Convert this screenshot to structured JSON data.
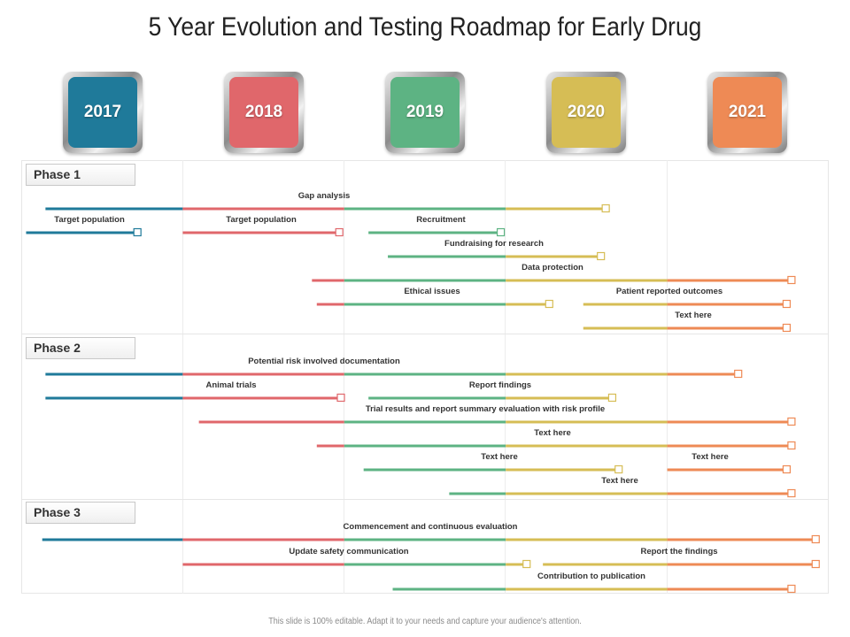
{
  "title": "5 Year Evolution and Testing Roadmap for Early Drug",
  "footer": "This slide is 100% editable. Adapt it to your needs and capture your audience's attention.",
  "colors": {
    "2017": "#1f7a9a",
    "2018": "#e0676b",
    "2019": "#5db383",
    "2020": "#d6bd55",
    "2021": "#ee8a55"
  },
  "years": [
    {
      "label": "2017",
      "color": "#1f7a9a"
    },
    {
      "label": "2018",
      "color": "#e0676b"
    },
    {
      "label": "2019",
      "color": "#5db383"
    },
    {
      "label": "2020",
      "color": "#d6bd55"
    },
    {
      "label": "2021",
      "color": "#ee8a55"
    }
  ],
  "phases": [
    {
      "label": "Phase 1"
    },
    {
      "label": "Phase 2"
    },
    {
      "label": "Phase 3"
    }
  ],
  "chart_data": {
    "type": "gantt",
    "time_axis": {
      "unit": "year",
      "start": 2017,
      "end": 2022
    },
    "tasks": [
      {
        "phase": "Phase 1",
        "label": "Gap analysis",
        "start": 2017.15,
        "end": 2020.6
      },
      {
        "phase": "Phase 1",
        "label": "Target population",
        "start": 2017.03,
        "end": 2017.7
      },
      {
        "phase": "Phase 1",
        "label": "Target population",
        "start": 2018.0,
        "end": 2018.95
      },
      {
        "phase": "Phase 1",
        "label": "Recruitment",
        "start": 2019.15,
        "end": 2019.95
      },
      {
        "phase": "Phase 1",
        "label": "Fundraising for research",
        "start": 2019.27,
        "end": 2020.57
      },
      {
        "phase": "Phase 1",
        "label": "Data protection",
        "start": 2018.8,
        "end": 2021.75
      },
      {
        "phase": "Phase 1",
        "label": "Ethical issues",
        "start": 2018.83,
        "end": 2020.25
      },
      {
        "phase": "Phase 1",
        "label": "Patient reported outcomes",
        "start": 2020.48,
        "end": 2021.72
      },
      {
        "phase": "Phase 1",
        "label": "Text here",
        "start": 2020.48,
        "end": 2021.72
      },
      {
        "phase": "Phase 2",
        "label": "Potential risk involved documentation",
        "start": 2017.15,
        "end": 2021.42
      },
      {
        "phase": "Phase 2",
        "label": "Animal trials",
        "start": 2017.15,
        "end": 2018.96
      },
      {
        "phase": "Phase 2",
        "label": "Report findings",
        "start": 2019.15,
        "end": 2020.64
      },
      {
        "phase": "Phase 2",
        "label": "Trial results and report summary evaluation with risk profile",
        "start": 2018.1,
        "end": 2021.75
      },
      {
        "phase": "Phase 2",
        "label": "Text here",
        "start": 2018.83,
        "end": 2021.75
      },
      {
        "phase": "Phase 2",
        "label": "Text here",
        "start": 2019.12,
        "end": 2020.68
      },
      {
        "phase": "Phase 2",
        "label": "Text here",
        "start": 2021.0,
        "end": 2021.72
      },
      {
        "phase": "Phase 2",
        "label": "Text here",
        "start": 2019.65,
        "end": 2021.75
      },
      {
        "phase": "Phase 3",
        "label": "Commencement and continuous evaluation",
        "start": 2017.13,
        "end": 2021.9
      },
      {
        "phase": "Phase 3",
        "label": "Update safety communication",
        "start": 2018.0,
        "end": 2020.11
      },
      {
        "phase": "Phase 3",
        "label": "Report the findings",
        "start": 2020.23,
        "end": 2021.9
      },
      {
        "phase": "Phase 3",
        "label": "Contribution to publication",
        "start": 2019.3,
        "end": 2021.75
      }
    ]
  }
}
